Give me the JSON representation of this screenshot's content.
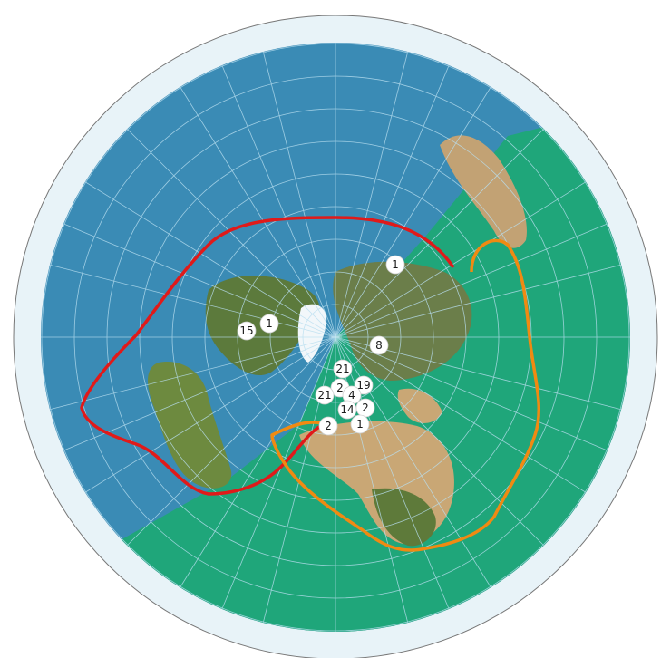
{
  "map": {
    "projection": "azimuthal-equidistant-polar",
    "colors": {
      "ocean_blue": "#3a8bb5",
      "ocean_green": "#1fa67a",
      "outer_ice": "#e8f3f8",
      "graticule": "#b9dff0",
      "red_route": "#e01a1a",
      "orange_route": "#f08a12",
      "land_dark": "#4f6a35",
      "land_desert": "#c9a775",
      "ice": "#f2f7fa"
    }
  },
  "markers": [
    {
      "label": "1",
      "icon": "count-badge"
    },
    {
      "label": "15",
      "icon": "count-badge"
    },
    {
      "label": "1",
      "icon": "count-badge"
    },
    {
      "label": "8",
      "icon": "count-badge"
    },
    {
      "label": "21",
      "icon": "count-badge"
    },
    {
      "label": "2",
      "icon": "count-badge"
    },
    {
      "label": "19",
      "icon": "count-badge"
    },
    {
      "label": "4",
      "icon": "count-badge"
    },
    {
      "label": "21",
      "icon": "count-badge"
    },
    {
      "label": "14",
      "icon": "count-badge"
    },
    {
      "label": "2",
      "icon": "count-badge"
    },
    {
      "label": "2",
      "icon": "count-badge"
    },
    {
      "label": "1",
      "icon": "count-badge"
    }
  ],
  "routes": [
    {
      "color": "red"
    },
    {
      "color": "orange"
    }
  ]
}
